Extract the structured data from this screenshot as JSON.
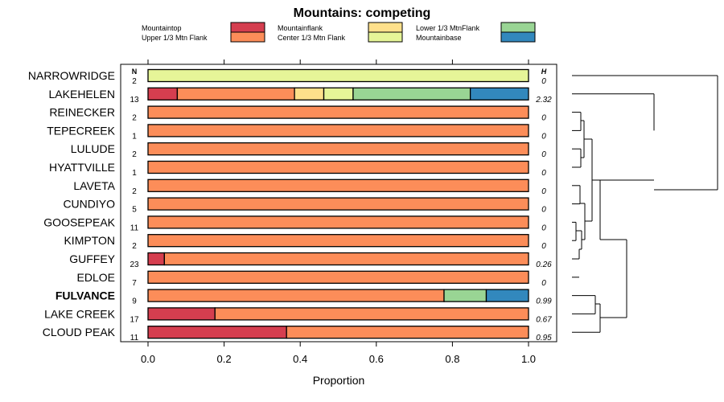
{
  "chart_data": {
    "type": "bar",
    "orientation": "horizontal",
    "stacked": true,
    "title": "Mountains: competing",
    "xlabel": "Proportion",
    "ylabel": "",
    "xlim": [
      0,
      1
    ],
    "x_ticks": [
      "0.0",
      "0.2",
      "0.4",
      "0.6",
      "0.8",
      "1.0"
    ],
    "n_header": "N",
    "h_header": "H",
    "legend": [
      {
        "name": "Mountaintop",
        "color": "#d53e4f"
      },
      {
        "name": "Mountainflank",
        "color": "#fee08b"
      },
      {
        "name": "Lower 1/3 MtnFlank",
        "color": "#99d594"
      },
      {
        "name": "Upper 1/3 Mtn Flank",
        "color": "#fc8d59"
      },
      {
        "name": "Center 1/3 Mtn Flank",
        "color": "#e6f598"
      },
      {
        "name": "Mountainbase",
        "color": "#3288bd"
      }
    ],
    "rows": [
      {
        "name": "NARROWRIDGE",
        "n": "2",
        "h": "0",
        "bold": false,
        "segments": [
          {
            "cat": "Center 1/3 Mtn Flank",
            "value": 1.0
          }
        ]
      },
      {
        "name": "LAKEHELEN",
        "n": "13",
        "h": "2.32",
        "bold": false,
        "segments": [
          {
            "cat": "Mountaintop",
            "value": 0.077
          },
          {
            "cat": "Upper 1/3 Mtn Flank",
            "value": 0.308
          },
          {
            "cat": "Mountainflank",
            "value": 0.077
          },
          {
            "cat": "Center 1/3 Mtn Flank",
            "value": 0.077
          },
          {
            "cat": "Lower 1/3 MtnFlank",
            "value": 0.308
          },
          {
            "cat": "Mountainbase",
            "value": 0.153
          }
        ]
      },
      {
        "name": "REINECKER",
        "n": "2",
        "h": "0",
        "bold": false,
        "segments": [
          {
            "cat": "Upper 1/3 Mtn Flank",
            "value": 1.0
          }
        ]
      },
      {
        "name": "TEPECREEK",
        "n": "1",
        "h": "0",
        "bold": false,
        "segments": [
          {
            "cat": "Upper 1/3 Mtn Flank",
            "value": 1.0
          }
        ]
      },
      {
        "name": "LULUDE",
        "n": "2",
        "h": "0",
        "bold": false,
        "segments": [
          {
            "cat": "Upper 1/3 Mtn Flank",
            "value": 1.0
          }
        ]
      },
      {
        "name": "HYATTVILLE",
        "n": "1",
        "h": "0",
        "bold": false,
        "segments": [
          {
            "cat": "Upper 1/3 Mtn Flank",
            "value": 1.0
          }
        ]
      },
      {
        "name": "LAVETA",
        "n": "2",
        "h": "0",
        "bold": false,
        "segments": [
          {
            "cat": "Upper 1/3 Mtn Flank",
            "value": 1.0
          }
        ]
      },
      {
        "name": "CUNDIYO",
        "n": "5",
        "h": "0",
        "bold": false,
        "segments": [
          {
            "cat": "Upper 1/3 Mtn Flank",
            "value": 1.0
          }
        ]
      },
      {
        "name": "GOOSEPEAK",
        "n": "11",
        "h": "0",
        "bold": false,
        "segments": [
          {
            "cat": "Upper 1/3 Mtn Flank",
            "value": 1.0
          }
        ]
      },
      {
        "name": "KIMPTON",
        "n": "2",
        "h": "0",
        "bold": false,
        "segments": [
          {
            "cat": "Upper 1/3 Mtn Flank",
            "value": 1.0
          }
        ]
      },
      {
        "name": "GUFFEY",
        "n": "23",
        "h": "0.26",
        "bold": false,
        "segments": [
          {
            "cat": "Mountaintop",
            "value": 0.043
          },
          {
            "cat": "Upper 1/3 Mtn Flank",
            "value": 0.957
          }
        ]
      },
      {
        "name": "EDLOE",
        "n": "7",
        "h": "0",
        "bold": false,
        "segments": [
          {
            "cat": "Upper 1/3 Mtn Flank",
            "value": 1.0
          }
        ]
      },
      {
        "name": "FULVANCE",
        "n": "9",
        "h": "0.99",
        "bold": true,
        "segments": [
          {
            "cat": "Upper 1/3 Mtn Flank",
            "value": 0.778
          },
          {
            "cat": "Lower 1/3 MtnFlank",
            "value": 0.111
          },
          {
            "cat": "Mountainbase",
            "value": 0.111
          }
        ]
      },
      {
        "name": "LAKE CREEK",
        "n": "17",
        "h": "0.67",
        "bold": false,
        "segments": [
          {
            "cat": "Mountaintop",
            "value": 0.176
          },
          {
            "cat": "Upper 1/3 Mtn Flank",
            "value": 0.824
          }
        ]
      },
      {
        "name": "CLOUD PEAK",
        "n": "11",
        "h": "0.95",
        "bold": false,
        "segments": [
          {
            "cat": "Mountaintop",
            "value": 0.364
          },
          {
            "cat": "Upper 1/3 Mtn Flank",
            "value": 0.636
          }
        ]
      }
    ]
  }
}
